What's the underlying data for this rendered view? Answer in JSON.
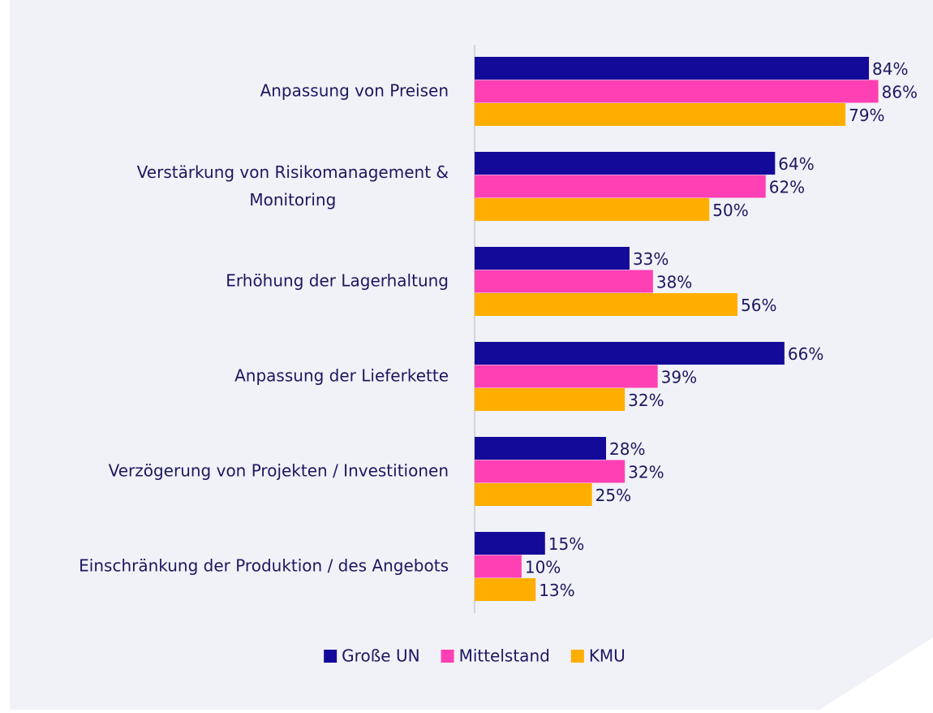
{
  "chart_data": {
    "type": "barh",
    "categories": [
      "Anpassung von Preisen",
      "Verstärkung von Risikomanagement &\nMonitoring",
      "Erhöhung der Lagerhaltung",
      "Anpassung der Lieferkette",
      "Verzögerung von Projekten / Investitionen",
      "Einschränkung der Produktion / des Angebots"
    ],
    "series": [
      {
        "name": "Große UN",
        "color": "#140a9a",
        "values": [
          84,
          64,
          33,
          66,
          28,
          15
        ],
        "value_labels": [
          "84%",
          "64%",
          "33%",
          "66%",
          "28%",
          "15%"
        ]
      },
      {
        "name": "Mittelstand",
        "color": "#ff3fb4",
        "values": [
          86,
          62,
          38,
          39,
          32,
          10
        ],
        "value_labels": [
          "86%",
          "62%",
          "38%",
          "39%",
          "32%",
          "10%"
        ]
      },
      {
        "name": "KMU",
        "color": "#ffae00",
        "values": [
          79,
          50,
          56,
          32,
          25,
          13
        ],
        "value_labels": [
          "79%",
          "50%",
          "56%",
          "32%",
          "25%",
          "13%"
        ]
      }
    ],
    "xlim": [
      0,
      100
    ],
    "legend": "bottom"
  }
}
